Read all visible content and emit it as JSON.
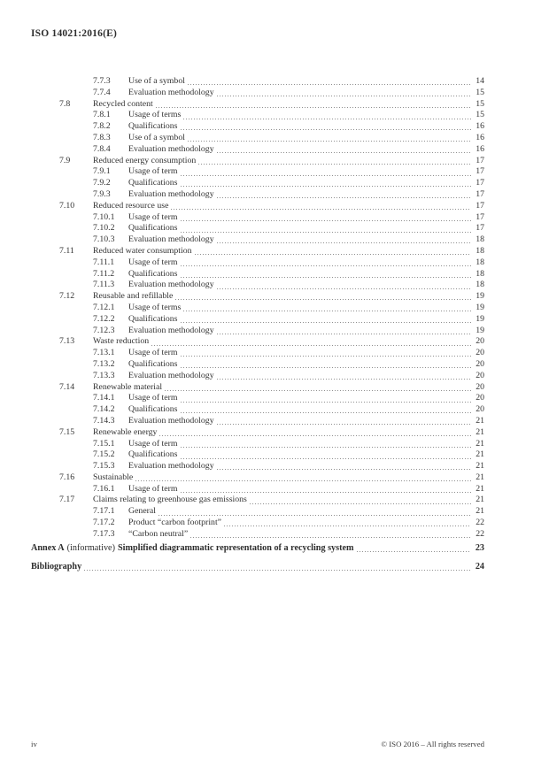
{
  "document": {
    "header": "ISO 14021:2016(E)",
    "footer": {
      "page_label": "iv",
      "copyright": "© ISO 2016 – All rights reserved"
    }
  },
  "toc": {
    "entries": [
      {
        "level": 3,
        "num": "7.7.3",
        "title": "Use of a symbol",
        "page": "14"
      },
      {
        "level": 3,
        "num": "7.7.4",
        "title": "Evaluation methodology",
        "page": "15"
      },
      {
        "level": 2,
        "num": "7.8",
        "title": "Recycled content",
        "page": "15"
      },
      {
        "level": 3,
        "num": "7.8.1",
        "title": "Usage of terms",
        "page": "15"
      },
      {
        "level": 3,
        "num": "7.8.2",
        "title": "Qualifications",
        "page": "16"
      },
      {
        "level": 3,
        "num": "7.8.3",
        "title": "Use of a symbol",
        "page": "16"
      },
      {
        "level": 3,
        "num": "7.8.4",
        "title": "Evaluation methodology",
        "page": "16"
      },
      {
        "level": 2,
        "num": "7.9",
        "title": "Reduced energy consumption",
        "page": "17"
      },
      {
        "level": 3,
        "num": "7.9.1",
        "title": "Usage of term",
        "page": "17"
      },
      {
        "level": 3,
        "num": "7.9.2",
        "title": "Qualifications",
        "page": "17"
      },
      {
        "level": 3,
        "num": "7.9.3",
        "title": "Evaluation methodology",
        "page": "17"
      },
      {
        "level": 2,
        "num": "7.10",
        "title": "Reduced resource use",
        "page": "17"
      },
      {
        "level": 3,
        "num": "7.10.1",
        "title": "Usage of term",
        "page": "17"
      },
      {
        "level": 3,
        "num": "7.10.2",
        "title": "Qualifications",
        "page": "17"
      },
      {
        "level": 3,
        "num": "7.10.3",
        "title": "Evaluation methodology",
        "page": "18"
      },
      {
        "level": 2,
        "num": "7.11",
        "title": "Reduced water consumption",
        "page": "18"
      },
      {
        "level": 3,
        "num": "7.11.1",
        "title": "Usage of term",
        "page": "18"
      },
      {
        "level": 3,
        "num": "7.11.2",
        "title": "Qualifications",
        "page": "18"
      },
      {
        "level": 3,
        "num": "7.11.3",
        "title": "Evaluation methodology",
        "page": "18"
      },
      {
        "level": 2,
        "num": "7.12",
        "title": "Reusable and refillable",
        "page": "19"
      },
      {
        "level": 3,
        "num": "7.12.1",
        "title": "Usage of terms",
        "page": "19"
      },
      {
        "level": 3,
        "num": "7.12.2",
        "title": "Qualifications",
        "page": "19"
      },
      {
        "level": 3,
        "num": "7.12.3",
        "title": "Evaluation methodology",
        "page": "19"
      },
      {
        "level": 2,
        "num": "7.13",
        "title": "Waste reduction",
        "page": "20"
      },
      {
        "level": 3,
        "num": "7.13.1",
        "title": "Usage of term",
        "page": "20"
      },
      {
        "level": 3,
        "num": "7.13.2",
        "title": "Qualifications",
        "page": "20"
      },
      {
        "level": 3,
        "num": "7.13.3",
        "title": "Evaluation methodology",
        "page": "20"
      },
      {
        "level": 2,
        "num": "7.14",
        "title": "Renewable material",
        "page": "20"
      },
      {
        "level": 3,
        "num": "7.14.1",
        "title": "Usage of term",
        "page": "20"
      },
      {
        "level": 3,
        "num": "7.14.2",
        "title": "Qualifications",
        "page": "20"
      },
      {
        "level": 3,
        "num": "7.14.3",
        "title": "Evaluation methodology",
        "page": "21"
      },
      {
        "level": 2,
        "num": "7.15",
        "title": "Renewable energy",
        "page": "21"
      },
      {
        "level": 3,
        "num": "7.15.1",
        "title": "Usage of term",
        "page": "21"
      },
      {
        "level": 3,
        "num": "7.15.2",
        "title": "Qualifications",
        "page": "21"
      },
      {
        "level": 3,
        "num": "7.15.3",
        "title": "Evaluation methodology",
        "page": "21"
      },
      {
        "level": 2,
        "num": "7.16",
        "title": "Sustainable",
        "page": "21"
      },
      {
        "level": 3,
        "num": "7.16.1",
        "title": "Usage of term",
        "page": "21"
      },
      {
        "level": 2,
        "num": "7.17",
        "title": "Claims relating to greenhouse gas emissions",
        "page": "21"
      },
      {
        "level": 3,
        "num": "7.17.1",
        "title": "General",
        "page": "21"
      },
      {
        "level": 3,
        "num": "7.17.2",
        "title": "Product “carbon footprint”",
        "page": "22"
      },
      {
        "level": 3,
        "num": "7.17.3",
        "title": "“Carbon neutral”",
        "page": "22"
      }
    ],
    "annex": {
      "label": "Annex A",
      "qualifier": "(informative)",
      "title": "Simplified diagrammatic representation of a recycling system",
      "page": "23"
    },
    "bibliography": {
      "label": "Bibliography",
      "page": "24"
    }
  }
}
